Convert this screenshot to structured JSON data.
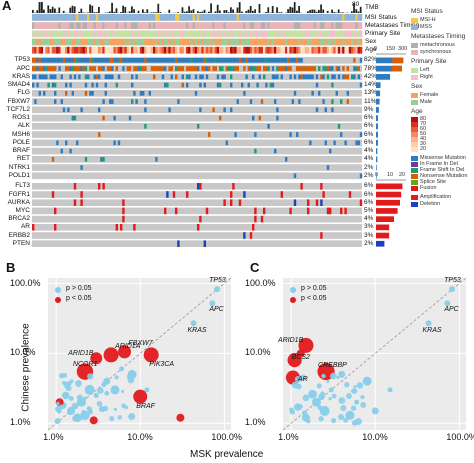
{
  "panel_a": {
    "letter": "A",
    "tmb_axis_top": "80",
    "annotation_tracks": [
      "TMB",
      "MSI Status",
      "Metastases Timing",
      "Primary Site",
      "Sex",
      "Age"
    ],
    "genes": [
      {
        "name": "TP53",
        "pct": "82%"
      },
      {
        "name": "APC",
        "pct": "78%"
      },
      {
        "name": "KRAS",
        "pct": "42%"
      },
      {
        "name": "SMAD4",
        "pct": "14%"
      },
      {
        "name": "FLG",
        "pct": "13%"
      },
      {
        "name": "FBXW7",
        "pct": "11%"
      },
      {
        "name": "TCF7L2",
        "pct": "9%"
      },
      {
        "name": "ROS1",
        "pct": "6%"
      },
      {
        "name": "ALK",
        "pct": "6%"
      },
      {
        "name": "MSH6",
        "pct": "6%"
      },
      {
        "name": "POLE",
        "pct": "6%"
      },
      {
        "name": "BRAF",
        "pct": "4%"
      },
      {
        "name": "RET",
        "pct": "4%"
      },
      {
        "name": "NTRK1",
        "pct": "2%"
      },
      {
        "name": "POLD1",
        "pct": "2%"
      }
    ],
    "cnv_genes": [
      {
        "name": "FLT3",
        "pct": "6%"
      },
      {
        "name": "FGFR1",
        "pct": "6%"
      },
      {
        "name": "AURKA",
        "pct": "6%"
      },
      {
        "name": "MYC",
        "pct": "5%"
      },
      {
        "name": "BRCA2",
        "pct": "4%"
      },
      {
        "name": "AR",
        "pct": "3%"
      },
      {
        "name": "ERBB2",
        "pct": "3%"
      },
      {
        "name": "PTEN",
        "pct": "2%"
      }
    ],
    "mut_bar_axis": [
      "0",
      "150",
      "300"
    ],
    "cnv_bar_axis": [
      "0",
      "10",
      "20"
    ],
    "legend": {
      "msi_title": "MSI Status",
      "msi_items": [
        {
          "label": "MSI-H",
          "color": "#f2c94c"
        },
        {
          "label": "MSS",
          "color": "#8fb4d9"
        }
      ],
      "met_title": "Metastases Timing",
      "met_items": [
        {
          "label": "metachronous",
          "color": "#b0b0b0"
        },
        {
          "label": "synchronous",
          "color": "#e8b4b8"
        }
      ],
      "site_title": "Primary Site",
      "site_items": [
        {
          "label": "Left",
          "color": "#c5e1a5"
        },
        {
          "label": "Right",
          "color": "#f8bbd0"
        }
      ],
      "sex_title": "Sex",
      "sex_items": [
        {
          "label": "Female",
          "color": "#f4a460"
        },
        {
          "label": "Male",
          "color": "#9ccc9c"
        }
      ],
      "age_title": "Age",
      "age_ticks": [
        "80",
        "70",
        "60",
        "50",
        "40",
        "30",
        "20"
      ],
      "mut_items": [
        {
          "label": "Missense Mutation",
          "color": "#2e7bbf"
        },
        {
          "label": "In Frame In Del",
          "color": "#6a3d9a"
        },
        {
          "label": "Frame Shift In Del",
          "color": "#1b9e77"
        },
        {
          "label": "Nonsense Mutation",
          "color": "#d95f02"
        },
        {
          "label": "Splice Site",
          "color": "#66a61e"
        },
        {
          "label": "Fusion",
          "color": "#e31a1c"
        }
      ],
      "cnv_items": [
        {
          "label": "Amplification",
          "color": "#e31a1c"
        },
        {
          "label": "Deletion",
          "color": "#1f3fbf"
        }
      ]
    }
  },
  "panel_b": {
    "letter": "B",
    "y_label": "Chinese prevalence",
    "x_ticks": [
      "1.0%",
      "10.0%",
      "100.0%"
    ],
    "y_ticks": [
      "100.0%",
      "10.0%",
      "1.0%"
    ],
    "legend": [
      {
        "label": "p > 0.05",
        "color": "#87ceeb"
      },
      {
        "label": "p < 0.05",
        "color": "#e31a1c"
      }
    ],
    "genes": [
      "TP53",
      "APC",
      "KRAS",
      "FBXW7",
      "ARID1A",
      "PIK3CA",
      "ARID1B",
      "NCOR1",
      "BRAF"
    ]
  },
  "panel_c": {
    "letter": "C",
    "x_ticks": [
      "1.0%",
      "10.0%",
      "100.0%"
    ],
    "y_ticks": [
      "100.0%",
      "10.0%",
      "1.0%"
    ],
    "legend": [
      {
        "label": "p > 0.05",
        "color": "#87ceeb"
      },
      {
        "label": "p < 0.05",
        "color": "#e31a1c"
      }
    ],
    "genes": [
      "TP53",
      "APC",
      "KRAS",
      "ARID1B",
      "BCS2",
      "CREBBP",
      "AR"
    ]
  },
  "shared_x_label": "MSK prevalence",
  "chart_data": [
    {
      "type": "scatter",
      "title": "",
      "xlabel": "MSK prevalence",
      "ylabel": "Chinese prevalence",
      "xscale": "log",
      "yscale": "log",
      "xlim": [
        0.8,
        120
      ],
      "ylim": [
        0.8,
        120
      ],
      "series": [
        {
          "name": "p > 0.05",
          "points": [
            {
              "x": 82,
              "y": 83,
              "label": "TP53"
            },
            {
              "x": 72,
              "y": 52,
              "label": "APC"
            },
            {
              "x": 43,
              "y": 27,
              "label": "KRAS"
            },
            {
              "x": 6,
              "y": 6
            },
            {
              "x": 4,
              "y": 4
            },
            {
              "x": 3,
              "y": 2.5
            },
            {
              "x": 2.5,
              "y": 3
            },
            {
              "x": 2,
              "y": 2
            },
            {
              "x": 1.5,
              "y": 1.5
            },
            {
              "x": 1.2,
              "y": 1.8
            },
            {
              "x": 1.8,
              "y": 1.2
            },
            {
              "x": 2.2,
              "y": 1.3
            },
            {
              "x": 1.3,
              "y": 2.5
            },
            {
              "x": 3.5,
              "y": 1.6
            },
            {
              "x": 5,
              "y": 3
            },
            {
              "x": 8,
              "y": 5
            },
            {
              "x": 12,
              "y": 3
            }
          ]
        },
        {
          "name": "p < 0.05",
          "points": [
            {
              "x": 6.5,
              "y": 10.5,
              "label": "FBXW7"
            },
            {
              "x": 4.5,
              "y": 9.5,
              "label": "ARID1A"
            },
            {
              "x": 13.5,
              "y": 9.5,
              "label": "PIK3CA"
            },
            {
              "x": 3,
              "y": 8.5,
              "label": "ARID1B"
            },
            {
              "x": 2.2,
              "y": 5.5,
              "label": "NCOR1"
            },
            {
              "x": 10,
              "y": 2.4,
              "label": "BRAF"
            },
            {
              "x": 30,
              "y": 1.2
            },
            {
              "x": 1.1,
              "y": 2.0
            },
            {
              "x": 2.8,
              "y": 1.1
            }
          ]
        }
      ]
    },
    {
      "type": "scatter",
      "title": "",
      "xlabel": "MSK prevalence",
      "ylabel": "",
      "xscale": "log",
      "yscale": "log",
      "xlim": [
        0.8,
        120
      ],
      "ylim": [
        0.8,
        120
      ],
      "series": [
        {
          "name": "p > 0.05",
          "points": [
            {
              "x": 82,
              "y": 83,
              "label": "TP53"
            },
            {
              "x": 72,
              "y": 52,
              "label": "APC"
            },
            {
              "x": 43,
              "y": 27,
              "label": "KRAS"
            },
            {
              "x": 4,
              "y": 5
            },
            {
              "x": 3,
              "y": 3
            },
            {
              "x": 2,
              "y": 2
            },
            {
              "x": 1.5,
              "y": 1.2
            },
            {
              "x": 2.5,
              "y": 1.5
            },
            {
              "x": 6,
              "y": 2
            },
            {
              "x": 10,
              "y": 1.5
            },
            {
              "x": 15,
              "y": 3
            },
            {
              "x": 1.2,
              "y": 1.7
            },
            {
              "x": 1.8,
              "y": 2.6
            },
            {
              "x": 5,
              "y": 1.3
            },
            {
              "x": 8,
              "y": 4
            }
          ]
        },
        {
          "name": "p < 0.05",
          "points": [
            {
              "x": 1.5,
              "y": 13,
              "label": "ARID1B"
            },
            {
              "x": 1.1,
              "y": 8,
              "label": "BCS2"
            },
            {
              "x": 2.6,
              "y": 5.5,
              "label": "CREBBP"
            },
            {
              "x": 1.05,
              "y": 4.5,
              "label": "AR"
            },
            {
              "x": 1.3,
              "y": 10
            }
          ]
        }
      ]
    }
  ]
}
